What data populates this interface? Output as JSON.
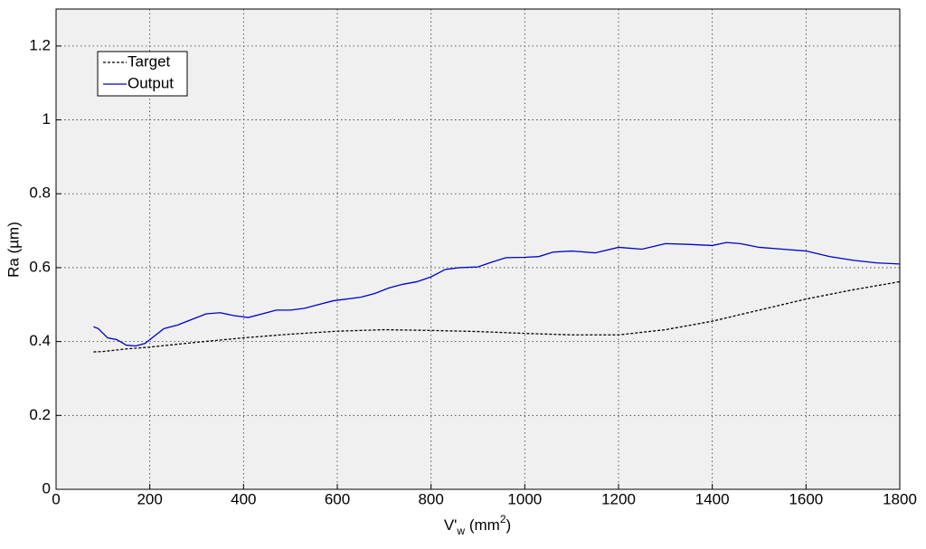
{
  "chart_data": {
    "type": "line",
    "xlabel": [
      "V'",
      "w",
      " (mm",
      "2",
      ")"
    ],
    "ylabel": "Ra (µm)",
    "xlim": [
      0,
      1800
    ],
    "xticks": [
      0,
      200,
      400,
      600,
      800,
      1000,
      1200,
      1400,
      1600,
      1800
    ],
    "ylim": [
      0,
      1.3
    ],
    "yticks": [
      0,
      0.2,
      0.4,
      0.6,
      0.8,
      1,
      1.2
    ],
    "grid": true,
    "legend": "upper-left",
    "series": [
      {
        "name": "Target",
        "color": "#000000",
        "dash": true,
        "x": [
          80,
          100,
          150,
          200,
          300,
          400,
          500,
          600,
          700,
          800,
          900,
          1000,
          1100,
          1200,
          1300,
          1400,
          1500,
          1600,
          1700,
          1800
        ],
        "values": [
          0.372,
          0.373,
          0.38,
          0.385,
          0.398,
          0.41,
          0.42,
          0.428,
          0.432,
          0.43,
          0.427,
          0.422,
          0.418,
          0.418,
          0.432,
          0.455,
          0.485,
          0.515,
          0.54,
          0.562
        ]
      },
      {
        "name": "Output",
        "color": "#0000cc",
        "dash": false,
        "x": [
          80,
          90,
          110,
          130,
          150,
          170,
          190,
          210,
          230,
          260,
          290,
          320,
          350,
          380,
          410,
          440,
          470,
          500,
          530,
          560,
          590,
          620,
          650,
          680,
          710,
          740,
          770,
          800,
          830,
          860,
          900,
          930,
          960,
          1000,
          1030,
          1060,
          1100,
          1150,
          1200,
          1250,
          1300,
          1350,
          1400,
          1430,
          1460,
          1500,
          1550,
          1600,
          1650,
          1700,
          1750,
          1800
        ],
        "values": [
          0.44,
          0.435,
          0.41,
          0.405,
          0.39,
          0.388,
          0.395,
          0.415,
          0.435,
          0.445,
          0.46,
          0.475,
          0.478,
          0.47,
          0.465,
          0.475,
          0.485,
          0.485,
          0.49,
          0.5,
          0.51,
          0.515,
          0.52,
          0.53,
          0.545,
          0.555,
          0.562,
          0.575,
          0.595,
          0.6,
          0.602,
          0.615,
          0.627,
          0.628,
          0.63,
          0.642,
          0.645,
          0.64,
          0.655,
          0.65,
          0.665,
          0.663,
          0.66,
          0.668,
          0.665,
          0.655,
          0.65,
          0.645,
          0.63,
          0.62,
          0.613,
          0.61
        ]
      }
    ]
  }
}
